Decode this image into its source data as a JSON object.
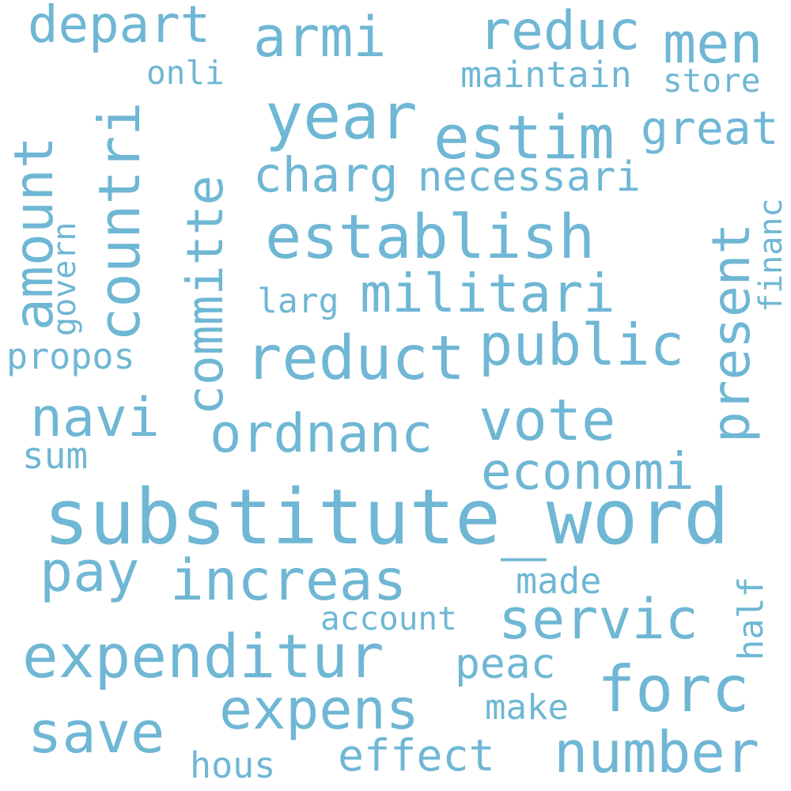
{
  "colors": {
    "background": "#ffffff",
    "word": "#6fb7d4"
  },
  "words": {
    "w1": "substitute_word",
    "w2": "establish",
    "w3": "militari",
    "w4": "reduct",
    "w5": "public",
    "w6": "expenditur",
    "w7": "increas",
    "w8": "servic",
    "w9": "forc",
    "w10": "number",
    "w11": "expens",
    "w12": "save",
    "w13": "pay",
    "w14": "navi",
    "w15": "ordnanc",
    "w16": "vote",
    "w17": "economi",
    "w18": "year",
    "w19": "estim",
    "w20": "charg",
    "w21": "necessari",
    "w22": "depart",
    "w23": "armi",
    "w24": "reduc",
    "w25": "men",
    "w26": "great",
    "w27": "maintain",
    "w28": "store",
    "w29": "onli",
    "w30": "larg",
    "w31": "propos",
    "w32": "sum",
    "w33": "made",
    "w34": "account",
    "w35": "peac",
    "w36": "make",
    "w37": "effect",
    "w38": "hous",
    "w39": "countri",
    "w40": "committe",
    "w41": "amount",
    "w42": "govern",
    "w43": "present",
    "w44": "financ",
    "w45": "half"
  }
}
